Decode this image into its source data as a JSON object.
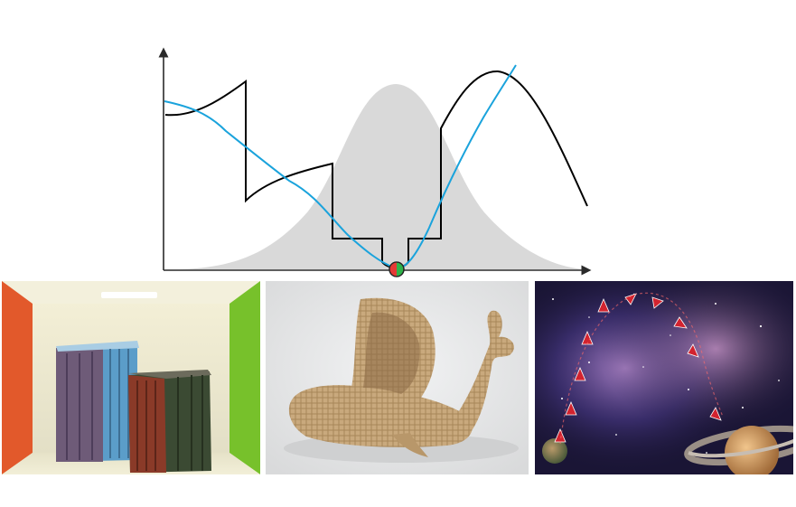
{
  "diagram": {
    "colors": {
      "axis": "#2a2a2a",
      "density_fill": "#d9d9d9",
      "objective_curve": "#000000",
      "smooth_curve": "#1aa3dc",
      "marker_left": "#e53935",
      "marker_right": "#2fb34a"
    }
  },
  "panels": [
    {
      "name": "cornell-box-render",
      "colors": {
        "left_wall": "#e2592b",
        "right_wall": "#77c12b",
        "crate_blue": "#5b9dc9",
        "crate_red": "#8a3a28"
      }
    },
    {
      "name": "wicker-whale-basket-render",
      "colors": {
        "wicker": "#c9a97d",
        "background": "#e8e9ea"
      }
    },
    {
      "name": "rockets-around-saturn-render",
      "colors": {
        "space": "#1a1535",
        "rocket": "#d2232f"
      }
    }
  ]
}
